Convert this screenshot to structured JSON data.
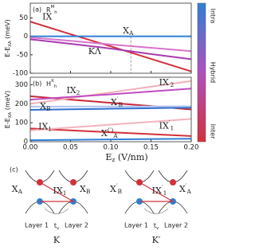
{
  "chart_data": [
    {
      "type": "line",
      "panel_label": "(a)",
      "stacking": {
        "base": "R",
        "sup": "M",
        "sub": "h"
      },
      "ylabel": {
        "base": "E-E",
        "sub": "XA",
        "tail": " (meV)"
      },
      "x": [
        0,
        0.05,
        0.1,
        0.15,
        0.2
      ],
      "xlim": [
        0,
        0.2
      ],
      "xticks": [
        0,
        0.05,
        0.1,
        0.15,
        0.2
      ],
      "ylim": [
        -100,
        90
      ],
      "yticks": [
        -100,
        -50,
        0,
        50
      ],
      "vline_x": 0.125,
      "series": [
        {
          "name": {
            "base": "IX"
          },
          "color": "#d3303a",
          "values": [
            40,
            6,
            -27,
            -61,
            -95
          ]
        },
        {
          "name": {
            "base": "X",
            "sub": "A"
          },
          "color": "#2f7fd6",
          "values": [
            0,
            0,
            0,
            0,
            0
          ]
        },
        {
          "name": {
            "base": "KΛ"
          },
          "color": "#a83ab0",
          "values": [
            -8,
            -20,
            -33,
            -48,
            -62
          ]
        },
        {
          "color": "#d872cc",
          "values": [
            -3,
            -12,
            -22,
            -31,
            -40
          ]
        }
      ]
    },
    {
      "type": "line",
      "panel_label": "(b)",
      "stacking": {
        "base": "H",
        "sup": "X",
        "sub": "h"
      },
      "ylabel": {
        "base": "E-E",
        "sub": "XA",
        "tail": " (meV)"
      },
      "xlabel": {
        "base": "E",
        "sub": "z",
        "tail": "  (V/nm)"
      },
      "x": [
        0,
        0.05,
        0.1,
        0.15,
        0.2
      ],
      "xlim": [
        0,
        0.2
      ],
      "xticks": [
        {
          "value": 0,
          "label": "0.00"
        },
        {
          "value": 0.05,
          "label": "0.05"
        },
        {
          "value": 0.1,
          "label": "0.10"
        },
        {
          "value": 0.15,
          "label": "0.15"
        },
        {
          "value": 0.2,
          "label": "0.20"
        }
      ],
      "ylim": [
        0,
        340
      ],
      "yticks": [
        0,
        100,
        200,
        300
      ],
      "series": [
        {
          "name": {
            "base": "IX",
            "sub": "2"
          },
          "color": "#c8283a",
          "values": [
            240,
            222,
            205,
            188,
            170
          ]
        },
        {
          "name": {
            "base": "IX",
            "sup": "′",
            "sub": "2"
          },
          "color": "#f0b0b8",
          "values": [
            200,
            230,
            260,
            290,
            320
          ]
        },
        {
          "color": "#c04cc0",
          "values": [
            222,
            236,
            250,
            265,
            280
          ]
        },
        {
          "name": {
            "base": "X",
            "sub": "B"
          },
          "color": "#3070d0",
          "values": [
            168,
            171,
            174,
            177,
            180
          ]
        },
        {
          "name": {
            "base": "X",
            "sup": "′",
            "sub": "B"
          },
          "color": "#b0c4f0",
          "values": [
            185,
            185,
            186,
            186,
            187
          ]
        },
        {
          "name": {
            "base": "IX",
            "sub": "1"
          },
          "color": "#d3303a",
          "values": [
            70,
            60,
            50,
            40,
            30
          ]
        },
        {
          "name": {
            "base": "IX",
            "sup": "′",
            "sub": "1"
          },
          "color": "#f2b4bc",
          "values": [
            60,
            75,
            90,
            105,
            120
          ]
        },
        {
          "name": {
            "base": "X",
            "sup": "(′)",
            "sub": "A"
          },
          "color": "#2f7fd6",
          "values": [
            8,
            10,
            12,
            14,
            16
          ]
        }
      ]
    }
  ],
  "colorbar": {
    "labels": [
      "Intra",
      "Hybrid",
      "Inter"
    ],
    "colors": [
      "#2f7fd6",
      "#b050c0",
      "#d3303a"
    ]
  },
  "diagram": {
    "panel_label": "(c)",
    "panels": [
      {
        "xa": {
          "base": "X",
          "sub": "A"
        },
        "ix": {
          "base": "IX",
          "sub": "1"
        },
        "xb": {
          "base": "X",
          "sub": "B"
        },
        "tv": {
          "base": "t",
          "sub": "v"
        },
        "layer1": "Layer 1",
        "layer2": "Layer 2",
        "valley": "K"
      },
      {
        "xa": {
          "base": "X",
          "sup": "′",
          "sub": "B"
        },
        "ix": {
          "base": "IX",
          "sup": "′",
          "sub": "1"
        },
        "xb": {
          "base": "X",
          "sup": "′",
          "sub": "A"
        },
        "tv": {
          "base": "t",
          "sub": "v"
        },
        "layer1": "Layer 1",
        "layer2": "Layer 2",
        "valley": "K′"
      }
    ]
  }
}
